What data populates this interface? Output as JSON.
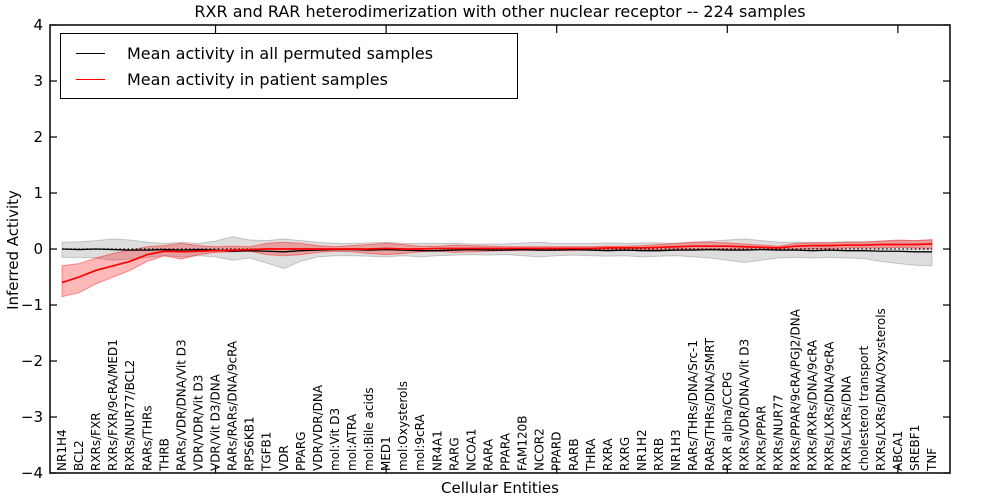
{
  "figure": {
    "title": "RXR and RAR heterodimerization with other nuclear receptor -- 224 samples",
    "xlabel": "Cellular Entities",
    "ylabel": "Inferred Activity"
  },
  "legend": {
    "items": [
      {
        "label": "Mean activity in all permuted samples",
        "color": "#000000"
      },
      {
        "label": "Mean activity in patient samples",
        "color": "#ff0000"
      }
    ],
    "position": "upper left"
  },
  "chart_data": {
    "type": "line",
    "title": "RXR and RAR heterodimerization with other nuclear receptor -- 224 samples",
    "xlabel": "Cellular Entities",
    "ylabel": "Inferred Activity",
    "ylim": [
      -4,
      4
    ],
    "yticks": [
      4,
      3,
      2,
      1,
      0,
      -1,
      -2,
      -3,
      -4
    ],
    "xtick_marker_indices": [
      9,
      19,
      29,
      39,
      49
    ],
    "grid": false,
    "zero_line": true,
    "legend_position": "upper left",
    "categories": [
      "NR1H4",
      "BCL2",
      "RXRs/FXR",
      "RXRs/FXR/9cRA/MED1",
      "RXRs/NUR77/BCL2",
      "RARs/THRs",
      "THRB",
      "RARs/VDR/DNA/Vit D3",
      "VDR/VDR/Vit D3",
      "VDR/Vit D3/DNA",
      "RARs/RARs/DNA/9cRA",
      "RPS6KB1",
      "TGFB1",
      "VDR",
      "PPARG",
      "VDR/VDR/DNA",
      "mol:Vit D3",
      "mol:ATRA",
      "mol:Bile acids",
      "MED1",
      "mol:Oxysterols",
      "mol:9cRA",
      "NR4A1",
      "RARG",
      "NCOA1",
      "RARA",
      "PPARA",
      "FAM120B",
      "NCOR2",
      "PPARD",
      "RARB",
      "THRA",
      "RXRA",
      "RXRG",
      "NR1H2",
      "RXRB",
      "NR1H3",
      "RARs/THRs/DNA/Src-1",
      "RARs/THRs/DNA/SMRT",
      "RXR alpha/CCPG",
      "RXRs/VDR/DNA/Vit D3",
      "RXRs/PPAR",
      "RXRs/NUR77",
      "RXRs/PPAR/9cRA/PGJ2/DNA",
      "RXRs/RXRs/DNA/9cRA",
      "RXRs/LXRs/DNA/9cRA",
      "RXRs/LXRs/DNA",
      "cholesterol transport",
      "RXRs/LXRs/DNA/Oxysterols",
      "ABCA1",
      "SREBF1",
      "TNF"
    ],
    "series": [
      {
        "name": "Mean activity in all permuted samples",
        "color": "#000000",
        "band_color": "rgba(0,0,0,0.13)",
        "band_edge_color": "rgba(0,0,0,0.18)",
        "values": [
          0.0,
          -0.01,
          0.0,
          -0.01,
          -0.02,
          -0.02,
          -0.01,
          -0.02,
          -0.01,
          -0.02,
          -0.04,
          -0.03,
          -0.04,
          -0.05,
          -0.03,
          -0.02,
          -0.01,
          -0.01,
          -0.02,
          -0.01,
          -0.02,
          -0.03,
          -0.03,
          -0.02,
          -0.01,
          -0.02,
          -0.02,
          -0.01,
          -0.02,
          -0.02,
          -0.01,
          -0.02,
          -0.03,
          -0.02,
          -0.03,
          -0.03,
          -0.02,
          -0.02,
          -0.01,
          -0.02,
          -0.02,
          -0.01,
          -0.02,
          -0.02,
          -0.03,
          -0.02,
          -0.03,
          -0.03,
          -0.04,
          -0.04,
          -0.05,
          -0.05
        ],
        "band_lo": [
          -0.15,
          -0.15,
          -0.16,
          -0.2,
          -0.18,
          -0.15,
          -0.12,
          -0.14,
          -0.12,
          -0.14,
          -0.2,
          -0.16,
          -0.25,
          -0.35,
          -0.22,
          -0.14,
          -0.12,
          -0.12,
          -0.13,
          -0.14,
          -0.12,
          -0.14,
          -0.12,
          -0.11,
          -0.1,
          -0.11,
          -0.1,
          -0.12,
          -0.14,
          -0.12,
          -0.11,
          -0.12,
          -0.13,
          -0.12,
          -0.14,
          -0.13,
          -0.12,
          -0.14,
          -0.16,
          -0.2,
          -0.24,
          -0.2,
          -0.16,
          -0.15,
          -0.16,
          -0.15,
          -0.16,
          -0.17,
          -0.22,
          -0.26,
          -0.29,
          -0.3
        ],
        "band_hi": [
          0.12,
          0.13,
          0.15,
          0.18,
          0.16,
          0.12,
          0.1,
          0.12,
          0.1,
          0.14,
          0.22,
          0.16,
          0.15,
          0.18,
          0.15,
          0.12,
          0.1,
          0.1,
          0.11,
          0.12,
          0.1,
          0.1,
          0.1,
          0.1,
          0.09,
          0.09,
          0.09,
          0.11,
          0.12,
          0.1,
          0.1,
          0.1,
          0.11,
          0.1,
          0.11,
          0.11,
          0.1,
          0.12,
          0.14,
          0.16,
          0.18,
          0.15,
          0.12,
          0.12,
          0.12,
          0.12,
          0.13,
          0.13,
          0.14,
          0.15,
          0.15,
          0.15
        ]
      },
      {
        "name": "Mean activity in patient samples",
        "color": "#ff0000",
        "band_color": "rgba(255,0,0,0.28)",
        "band_edge_color": "rgba(255,0,0,0.40)",
        "values": [
          -0.6,
          -0.5,
          -0.38,
          -0.3,
          -0.22,
          -0.1,
          -0.04,
          -0.05,
          -0.04,
          -0.03,
          -0.02,
          -0.01,
          0.0,
          0.0,
          0.0,
          0.0,
          0.0,
          0.0,
          0.0,
          0.01,
          0.0,
          0.0,
          0.01,
          0.01,
          0.01,
          0.01,
          0.01,
          0.01,
          0.01,
          0.01,
          0.01,
          0.01,
          0.02,
          0.02,
          0.02,
          0.03,
          0.04,
          0.05,
          0.05,
          0.05,
          0.04,
          0.03,
          0.02,
          0.05,
          0.06,
          0.06,
          0.07,
          0.07,
          0.08,
          0.08,
          0.08,
          0.09
        ],
        "band_lo": [
          -0.85,
          -0.78,
          -0.62,
          -0.5,
          -0.38,
          -0.22,
          -0.12,
          -0.18,
          -0.1,
          -0.06,
          -0.05,
          -0.04,
          -0.1,
          -0.12,
          -0.1,
          -0.06,
          -0.04,
          -0.05,
          -0.08,
          -0.1,
          -0.08,
          -0.05,
          -0.04,
          -0.06,
          -0.05,
          -0.04,
          -0.03,
          -0.03,
          -0.03,
          -0.03,
          -0.03,
          -0.02,
          -0.02,
          -0.02,
          -0.02,
          -0.01,
          0.0,
          0.0,
          0.0,
          0.0,
          -0.01,
          -0.01,
          -0.01,
          0.0,
          0.01,
          0.01,
          0.02,
          0.02,
          0.02,
          0.03,
          0.02,
          0.01
        ],
        "band_hi": [
          -0.3,
          -0.26,
          -0.16,
          -0.08,
          -0.02,
          0.04,
          0.06,
          0.1,
          0.06,
          0.04,
          0.05,
          0.04,
          0.1,
          0.12,
          0.1,
          0.06,
          0.04,
          0.06,
          0.08,
          0.1,
          0.08,
          0.05,
          0.05,
          0.07,
          0.06,
          0.05,
          0.04,
          0.04,
          0.04,
          0.04,
          0.04,
          0.04,
          0.05,
          0.05,
          0.06,
          0.08,
          0.1,
          0.12,
          0.12,
          0.11,
          0.09,
          0.07,
          0.05,
          0.1,
          0.11,
          0.11,
          0.12,
          0.12,
          0.14,
          0.16,
          0.15,
          0.17
        ]
      }
    ]
  }
}
